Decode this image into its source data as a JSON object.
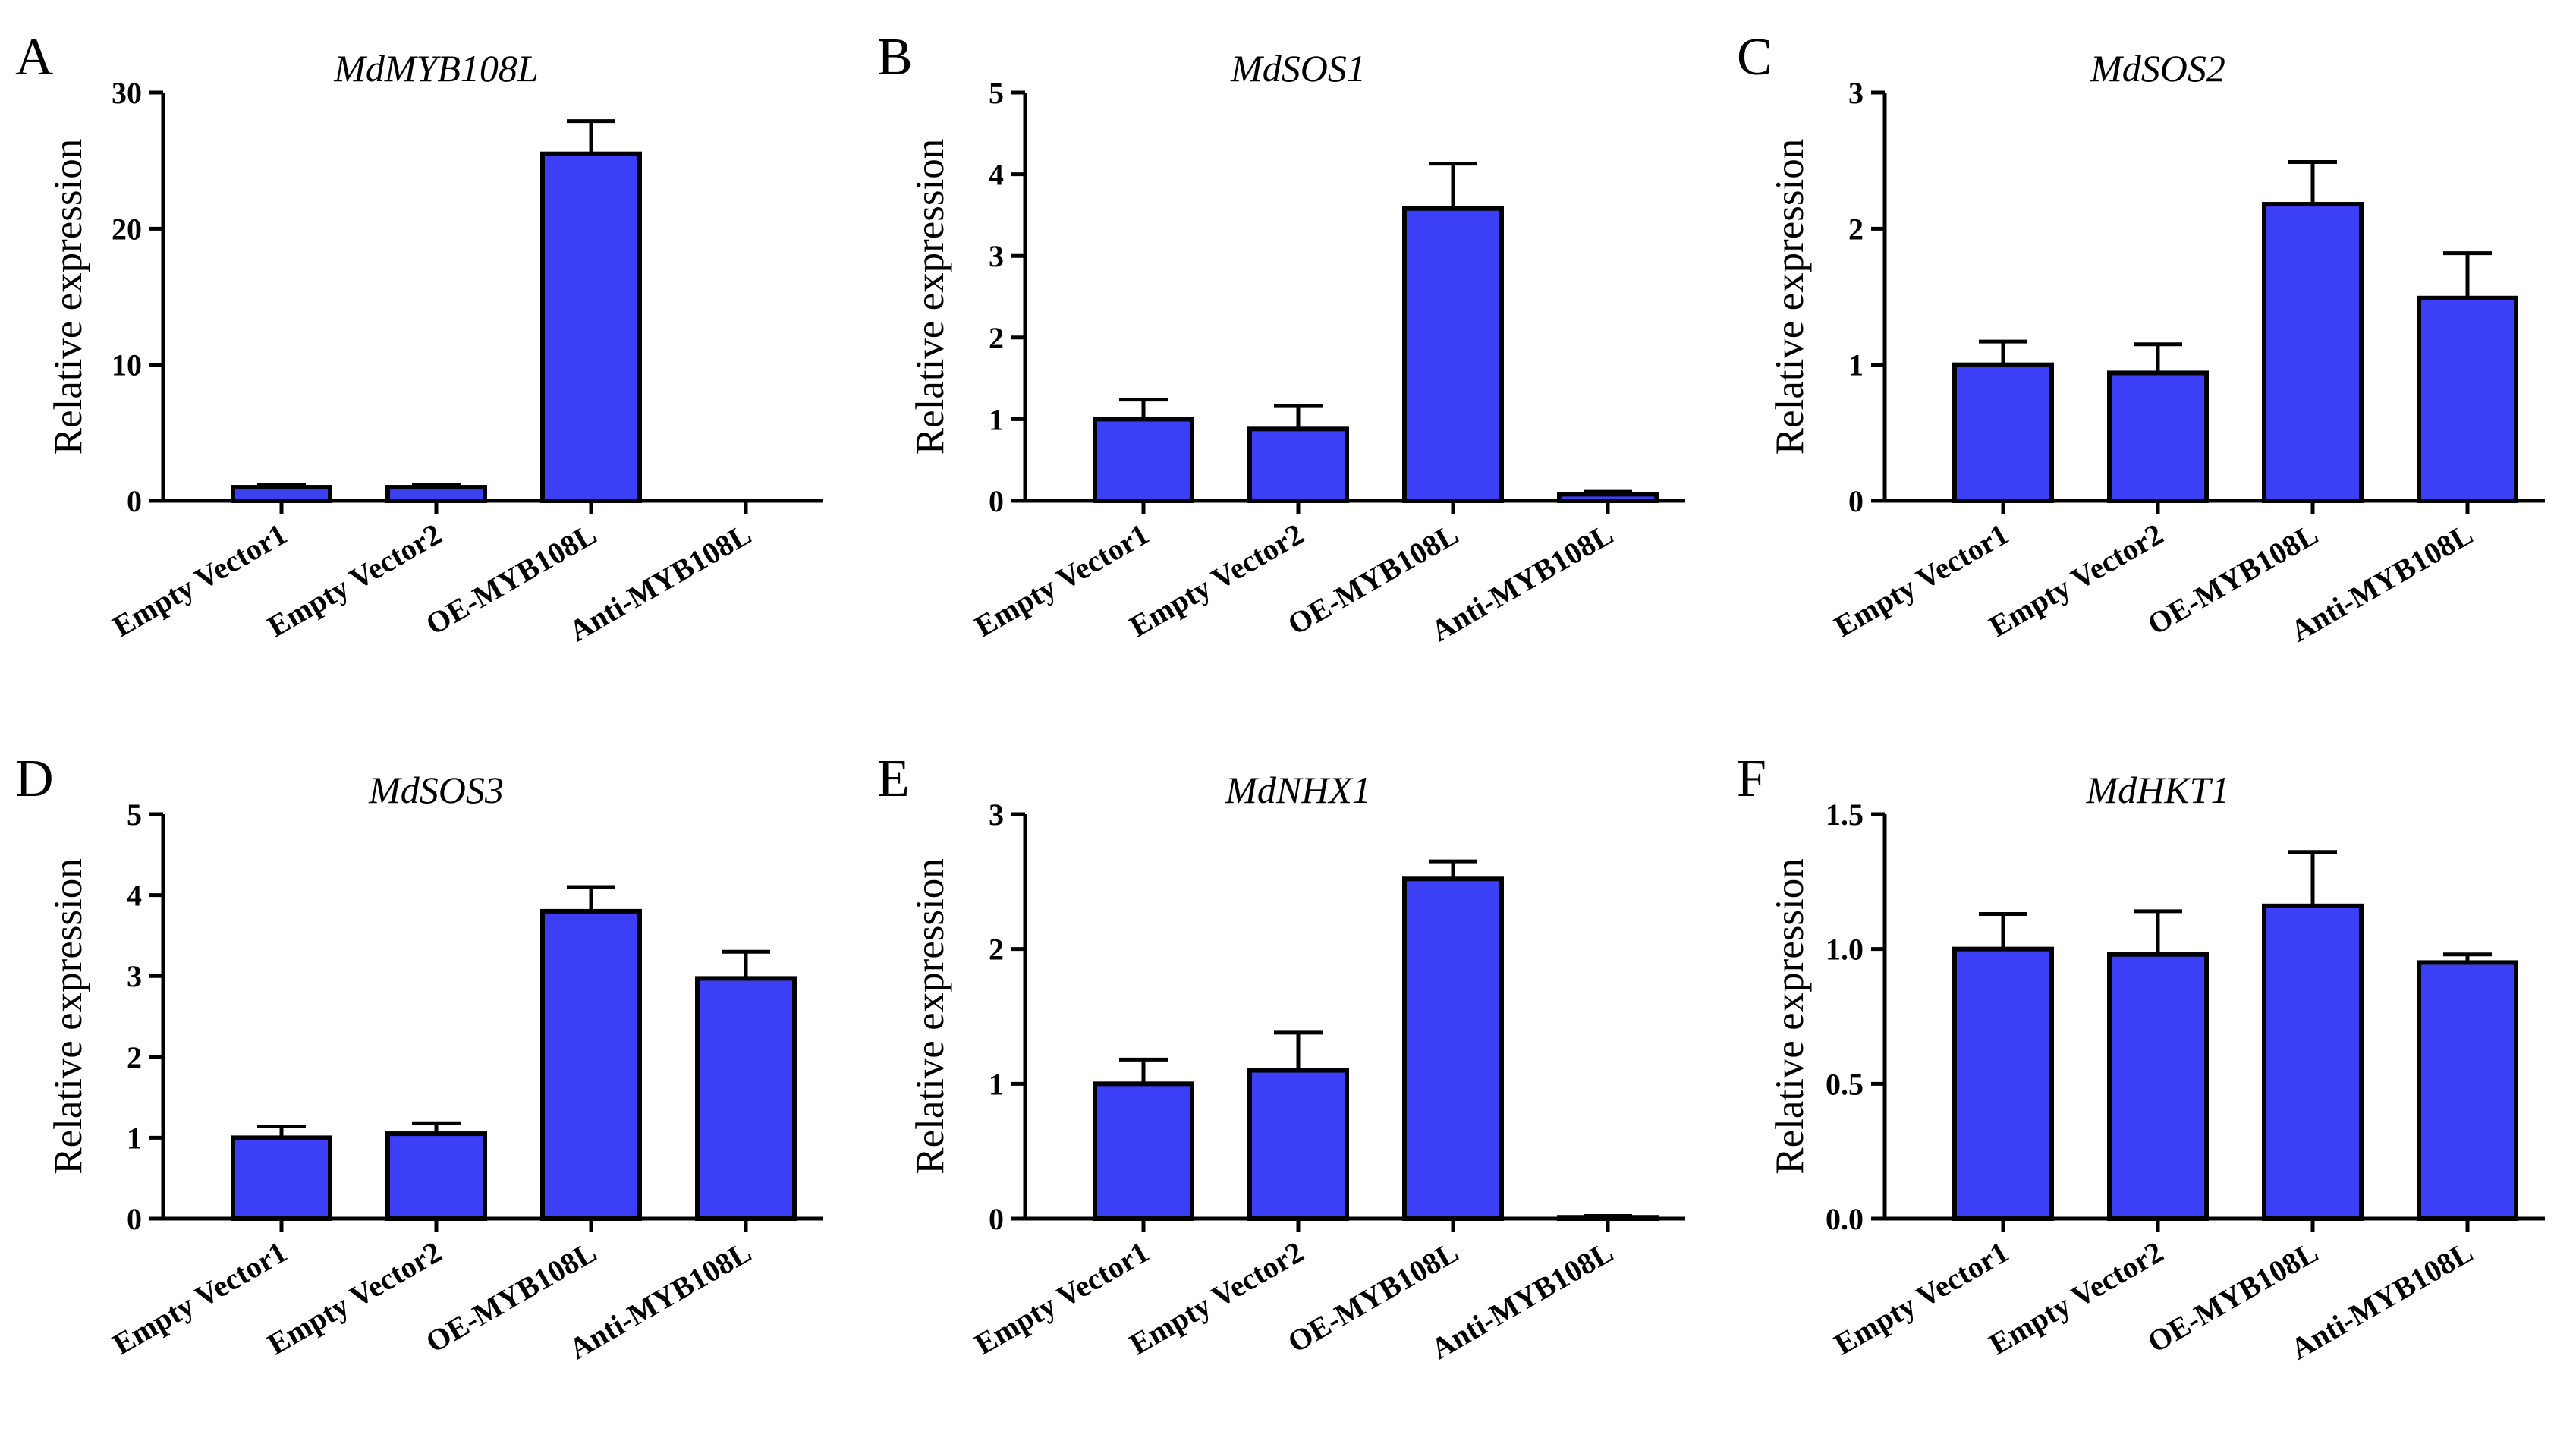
{
  "colors": {
    "bar_fill": "#3b3ff5",
    "axis": "#000000",
    "background": "#ffffff"
  },
  "chart_data": [
    {
      "panel": "A",
      "type": "bar",
      "title": "MdMYB108L",
      "ylabel": "Relative expression",
      "xlabel": "",
      "categories": [
        "Empty Vector1",
        "Empty Vector2",
        "OE-MYB108L",
        "Anti-MYB108L"
      ],
      "values": [
        1.0,
        1.0,
        25.5,
        0.0
      ],
      "errors": [
        0.2,
        0.2,
        2.4,
        0.0
      ],
      "ylim": [
        0,
        30
      ],
      "yticks": [
        0,
        10,
        20,
        30
      ],
      "ytick_labels": [
        "0",
        "10",
        "20",
        "30"
      ]
    },
    {
      "panel": "B",
      "type": "bar",
      "title": "MdSOS1",
      "ylabel": "Relative expression",
      "xlabel": "",
      "categories": [
        "Empty Vector1",
        "Empty Vector2",
        "OE-MYB108L",
        "Anti-MYB108L"
      ],
      "values": [
        1.0,
        0.88,
        3.58,
        0.08
      ],
      "errors": [
        0.24,
        0.28,
        0.55,
        0.03
      ],
      "ylim": [
        0,
        5
      ],
      "yticks": [
        0,
        1,
        2,
        3,
        4,
        5
      ],
      "ytick_labels": [
        "0",
        "1",
        "2",
        "3",
        "4",
        "5"
      ]
    },
    {
      "panel": "C",
      "type": "bar",
      "title": "MdSOS2",
      "ylabel": "Relative expression",
      "xlabel": "",
      "categories": [
        "Empty Vector1",
        "Empty Vector2",
        "OE-MYB108L",
        "Anti-MYB108L"
      ],
      "values": [
        1.0,
        0.94,
        2.18,
        1.49
      ],
      "errors": [
        0.17,
        0.21,
        0.31,
        0.33
      ],
      "ylim": [
        0,
        3
      ],
      "yticks": [
        0,
        1,
        2,
        3
      ],
      "ytick_labels": [
        "0",
        "1",
        "2",
        "3"
      ]
    },
    {
      "panel": "D",
      "type": "bar",
      "title": "MdSOS3",
      "ylabel": "Relative expression",
      "xlabel": "",
      "categories": [
        "Empty Vector1",
        "Empty Vector2",
        "OE-MYB108L",
        "Anti-MYB108L"
      ],
      "values": [
        1.0,
        1.05,
        3.8,
        2.97
      ],
      "errors": [
        0.14,
        0.13,
        0.3,
        0.33
      ],
      "ylim": [
        0,
        5
      ],
      "yticks": [
        0,
        1,
        2,
        3,
        4,
        5
      ],
      "ytick_labels": [
        "0",
        "1",
        "2",
        "3",
        "4",
        "5"
      ]
    },
    {
      "panel": "E",
      "type": "bar",
      "title": "MdNHX1",
      "ylabel": "Relative expression",
      "xlabel": "",
      "categories": [
        "Empty Vector1",
        "Empty Vector2",
        "OE-MYB108L",
        "Anti-MYB108L"
      ],
      "values": [
        1.0,
        1.1,
        2.52,
        0.01
      ],
      "errors": [
        0.18,
        0.28,
        0.13,
        0.01
      ],
      "ylim": [
        0,
        3
      ],
      "yticks": [
        0,
        1,
        2,
        3
      ],
      "ytick_labels": [
        "0",
        "1",
        "2",
        "3"
      ]
    },
    {
      "panel": "F",
      "type": "bar",
      "title": "MdHKT1",
      "ylabel": "Relative expression",
      "xlabel": "",
      "categories": [
        "Empty Vector1",
        "Empty Vector2",
        "OE-MYB108L",
        "Anti-MYB108L"
      ],
      "values": [
        1.0,
        0.98,
        1.16,
        0.95
      ],
      "errors": [
        0.13,
        0.16,
        0.2,
        0.03
      ],
      "ylim": [
        0,
        1.5
      ],
      "yticks": [
        0,
        0.5,
        1.0,
        1.5
      ],
      "ytick_labels": [
        "0.0",
        "0.5",
        "1.0",
        "1.5"
      ]
    }
  ]
}
